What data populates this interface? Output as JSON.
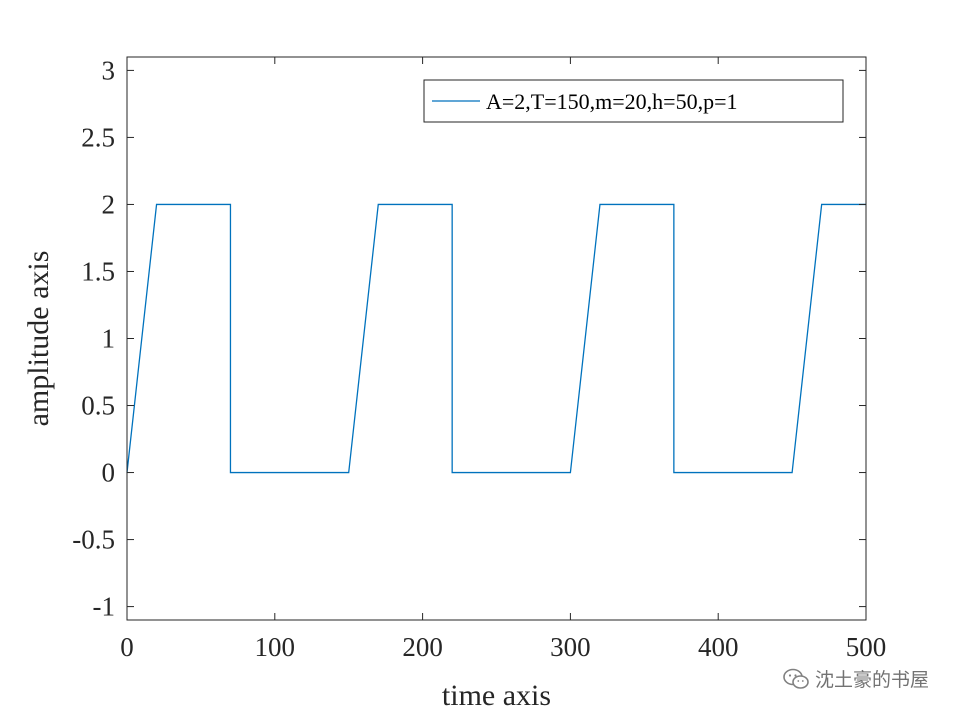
{
  "chart_data": {
    "type": "line",
    "title": "",
    "xlabel": "time axis",
    "ylabel": "amplitude axis",
    "xlim": [
      0,
      500
    ],
    "ylim": [
      -1.1,
      3.1
    ],
    "xticks": [
      0,
      100,
      200,
      300,
      400,
      500
    ],
    "xtick_labels": [
      "0",
      "100",
      "200",
      "300",
      "400",
      "500"
    ],
    "yticks": [
      -1,
      -0.5,
      0,
      0.5,
      1,
      1.5,
      2,
      2.5,
      3
    ],
    "ytick_labels": [
      "-1",
      "-0.5",
      "0",
      "0.5",
      "1",
      "1.5",
      "2",
      "2.5",
      "3"
    ],
    "grid": false,
    "legend_position": "top-right",
    "series": [
      {
        "name": "A=2,T=150,m=20,h=50,p=1",
        "color": "#0072BD",
        "x": [
          0,
          20,
          70,
          70,
          150,
          170,
          220,
          220,
          300,
          320,
          370,
          370,
          450,
          470,
          500
        ],
        "y": [
          0,
          2,
          2,
          0,
          0,
          2,
          2,
          0,
          0,
          2,
          2,
          0,
          0,
          2,
          2
        ]
      }
    ]
  },
  "watermark": {
    "icon": "wechat-icon",
    "text": "沈土豪的书屋"
  }
}
